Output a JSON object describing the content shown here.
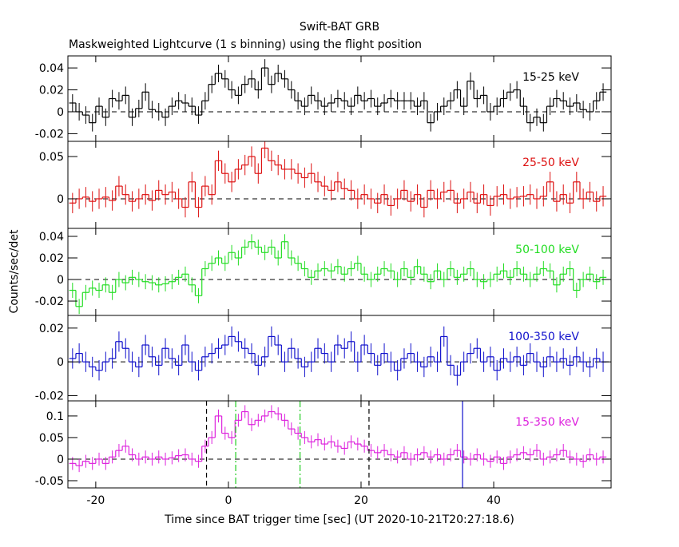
{
  "chart_data": {
    "type": "step",
    "title": "Swift-BAT GRB",
    "subtitle": "Maskweighted Lightcurve (1 s binning) using the flight position",
    "xlabel": "Time since BAT trigger time [sec] (UT 2020-10-21T20:27:18.6)",
    "ylabel": "Counts/sec/det",
    "xlim": [
      -24.2,
      57.7
    ],
    "xticks": [
      -20,
      0,
      20,
      40
    ],
    "bins": [
      -24,
      -23,
      -22,
      -21,
      -20,
      -19,
      -18,
      -17,
      -16,
      -15,
      -14,
      -13,
      -12,
      -11,
      -10,
      -9,
      -8,
      -7,
      -6,
      -5,
      -4,
      -3,
      -2,
      -1,
      0,
      1,
      2,
      3,
      4,
      5,
      6,
      7,
      8,
      9,
      10,
      11,
      12,
      13,
      14,
      15,
      16,
      17,
      18,
      19,
      20,
      21,
      22,
      23,
      24,
      25,
      26,
      27,
      28,
      29,
      30,
      31,
      32,
      33,
      34,
      35,
      36,
      37,
      38,
      39,
      40,
      41,
      42,
      43,
      44,
      45,
      46,
      47,
      48,
      49,
      50,
      51,
      52,
      53,
      54,
      55,
      56,
      57
    ],
    "panels": [
      {
        "name": "15-25 keV",
        "color": "#000000",
        "error": 0.008,
        "hline": 0,
        "ylim": [
          -0.027,
          0.051
        ],
        "yticks": [
          -0.02,
          0,
          0.02,
          0.04
        ],
        "values": [
          0.008,
          0.0,
          -0.003,
          -0.01,
          0.005,
          -0.005,
          0.012,
          0.01,
          0.015,
          -0.005,
          0.003,
          0.018,
          0.002,
          0.0,
          -0.005,
          0.005,
          0.01,
          0.008,
          0.005,
          -0.003,
          0.01,
          0.025,
          0.035,
          0.03,
          0.02,
          0.015,
          0.025,
          0.03,
          0.02,
          0.04,
          0.025,
          0.035,
          0.03,
          0.02,
          0.01,
          0.005,
          0.015,
          0.01,
          0.005,
          0.008,
          0.012,
          0.01,
          0.005,
          0.015,
          0.01,
          0.012,
          0.005,
          0.008,
          0.012,
          0.01,
          0.01,
          0.01,
          0.005,
          0.01,
          -0.01,
          0.0,
          0.005,
          0.01,
          0.02,
          0.005,
          0.028,
          0.012,
          0.015,
          0.0,
          0.005,
          0.012,
          0.018,
          0.02,
          0.005,
          -0.01,
          -0.005,
          -0.01,
          0.005,
          0.012,
          0.01,
          0.005,
          0.008,
          0.002,
          0.0,
          0.01,
          0.018
        ]
      },
      {
        "name": "25-50 keV",
        "color": "#dd1111",
        "error": 0.012,
        "hline": 0,
        "ylim": [
          -0.035,
          0.068
        ],
        "yticks": [
          0,
          0.05
        ],
        "values": [
          -0.005,
          0.0,
          0.002,
          -0.003,
          0.0,
          0.002,
          -0.002,
          0.015,
          0.005,
          -0.003,
          0.0,
          0.005,
          -0.002,
          0.01,
          0.005,
          0.008,
          0.0,
          -0.01,
          0.02,
          -0.01,
          0.015,
          0.005,
          0.045,
          0.03,
          0.02,
          0.035,
          0.04,
          0.05,
          0.03,
          0.06,
          0.045,
          0.04,
          0.035,
          0.035,
          0.03,
          0.025,
          0.03,
          0.02,
          0.015,
          0.01,
          0.02,
          0.012,
          0.01,
          0.0,
          0.005,
          0.0,
          -0.005,
          0.005,
          -0.008,
          0.0,
          0.01,
          -0.003,
          0.005,
          -0.01,
          0.01,
          0.0,
          0.008,
          0.01,
          -0.005,
          0.0,
          0.008,
          -0.005,
          0.005,
          -0.008,
          0.003,
          0.005,
          0.0,
          0.002,
          0.003,
          0.005,
          0.0,
          0.003,
          0.02,
          -0.003,
          0.005,
          -0.005,
          0.02,
          0.0,
          0.008,
          -0.003,
          0.003
        ]
      },
      {
        "name": "50-100 keV",
        "color": "#22dd22",
        "error": 0.007,
        "hline": 0,
        "ylim": [
          -0.0333,
          0.0474
        ],
        "yticks": [
          -0.02,
          0,
          0.02,
          0.04
        ],
        "values": [
          -0.01,
          -0.025,
          -0.012,
          -0.008,
          -0.01,
          -0.005,
          -0.012,
          0.0,
          -0.003,
          0.002,
          0.0,
          -0.002,
          -0.003,
          -0.005,
          -0.004,
          -0.002,
          0.002,
          0.005,
          -0.005,
          -0.015,
          0.01,
          0.015,
          0.02,
          0.015,
          0.025,
          0.02,
          0.03,
          0.035,
          0.03,
          0.025,
          0.03,
          0.02,
          0.035,
          0.02,
          0.015,
          0.01,
          0.002,
          0.008,
          0.01,
          0.008,
          0.012,
          0.005,
          0.01,
          0.015,
          0.005,
          0.0,
          0.005,
          0.01,
          0.008,
          0.0,
          0.01,
          0.002,
          0.012,
          0.005,
          -0.002,
          0.008,
          0.0,
          0.01,
          0.002,
          0.005,
          0.01,
          0.0,
          -0.002,
          0.0,
          0.005,
          0.008,
          0.002,
          0.01,
          0.005,
          0.0,
          0.005,
          0.01,
          0.008,
          -0.005,
          0.005,
          0.01,
          -0.01,
          0.0,
          0.005,
          -0.002,
          0.002
        ]
      },
      {
        "name": "100-350 keV",
        "color": "#1111cc",
        "error": 0.006,
        "hline": 0,
        "ylim": [
          -0.0231,
          0.0275
        ],
        "yticks": [
          -0.02,
          0,
          0.02
        ],
        "values": [
          0.002,
          0.005,
          0.0,
          -0.003,
          -0.005,
          0.0,
          0.002,
          0.012,
          0.008,
          0.0,
          -0.003,
          0.01,
          0.003,
          -0.002,
          0.008,
          0.002,
          -0.002,
          0.01,
          0.0,
          -0.005,
          0.003,
          0.005,
          0.008,
          0.01,
          0.015,
          0.012,
          0.008,
          0.005,
          -0.002,
          0.003,
          0.015,
          0.01,
          0.0,
          0.008,
          0.002,
          -0.003,
          0.0,
          0.008,
          0.005,
          0.0,
          0.01,
          0.008,
          0.012,
          0.0,
          0.01,
          0.005,
          -0.002,
          0.005,
          0.0,
          -0.005,
          0.002,
          0.005,
          0.0,
          -0.003,
          0.003,
          0.0,
          0.015,
          -0.002,
          -0.008,
          0.0,
          0.005,
          0.008,
          0.0,
          0.003,
          -0.005,
          0.002,
          0.0,
          0.003,
          -0.002,
          0.005,
          0.0,
          -0.003,
          0.003,
          0.0,
          0.002,
          -0.002,
          0.003,
          0.0,
          -0.003,
          0.002,
          0.0
        ]
      },
      {
        "name": "15-350 keV",
        "color": "#dd22dd",
        "error": 0.015,
        "hline": 0,
        "ylim": [
          -0.0667,
          0.135
        ],
        "yticks": [
          -0.05,
          0,
          0.05,
          0.1
        ],
        "values": [
          -0.01,
          -0.015,
          -0.005,
          -0.01,
          0.0,
          -0.01,
          0.005,
          0.02,
          0.03,
          0.01,
          0.0,
          0.005,
          0.0,
          0.005,
          0.0,
          0.003,
          0.008,
          0.01,
          0.0,
          -0.005,
          0.03,
          0.05,
          0.1,
          0.06,
          0.05,
          0.09,
          0.11,
          0.08,
          0.09,
          0.1,
          0.11,
          0.105,
          0.09,
          0.07,
          0.06,
          0.05,
          0.04,
          0.045,
          0.035,
          0.04,
          0.03,
          0.025,
          0.04,
          0.035,
          0.03,
          0.02,
          0.015,
          0.02,
          0.01,
          0.005,
          0.015,
          0.0,
          0.01,
          0.015,
          0.005,
          0.01,
          0.0,
          0.01,
          0.02,
          0.005,
          0.0,
          0.01,
          0.0,
          -0.005,
          0.005,
          -0.01,
          0.005,
          0.01,
          0.015,
          0.01,
          0.02,
          0.0,
          0.005,
          0.01,
          0.02,
          0.005,
          0.0,
          -0.005,
          0.01,
          0.0,
          0.005
        ],
        "vlines": [
          {
            "value": -3.3,
            "color": "#000000",
            "style": "dashed"
          },
          {
            "value": 21.2,
            "color": "#000000",
            "style": "dashed"
          },
          {
            "value": 1.1,
            "color": "#22cc22",
            "style": "dashdot"
          },
          {
            "value": 10.8,
            "color": "#22cc22",
            "style": "dashdot"
          },
          {
            "value": 35.3,
            "color": "#1111cc",
            "style": "solid"
          }
        ]
      }
    ]
  }
}
